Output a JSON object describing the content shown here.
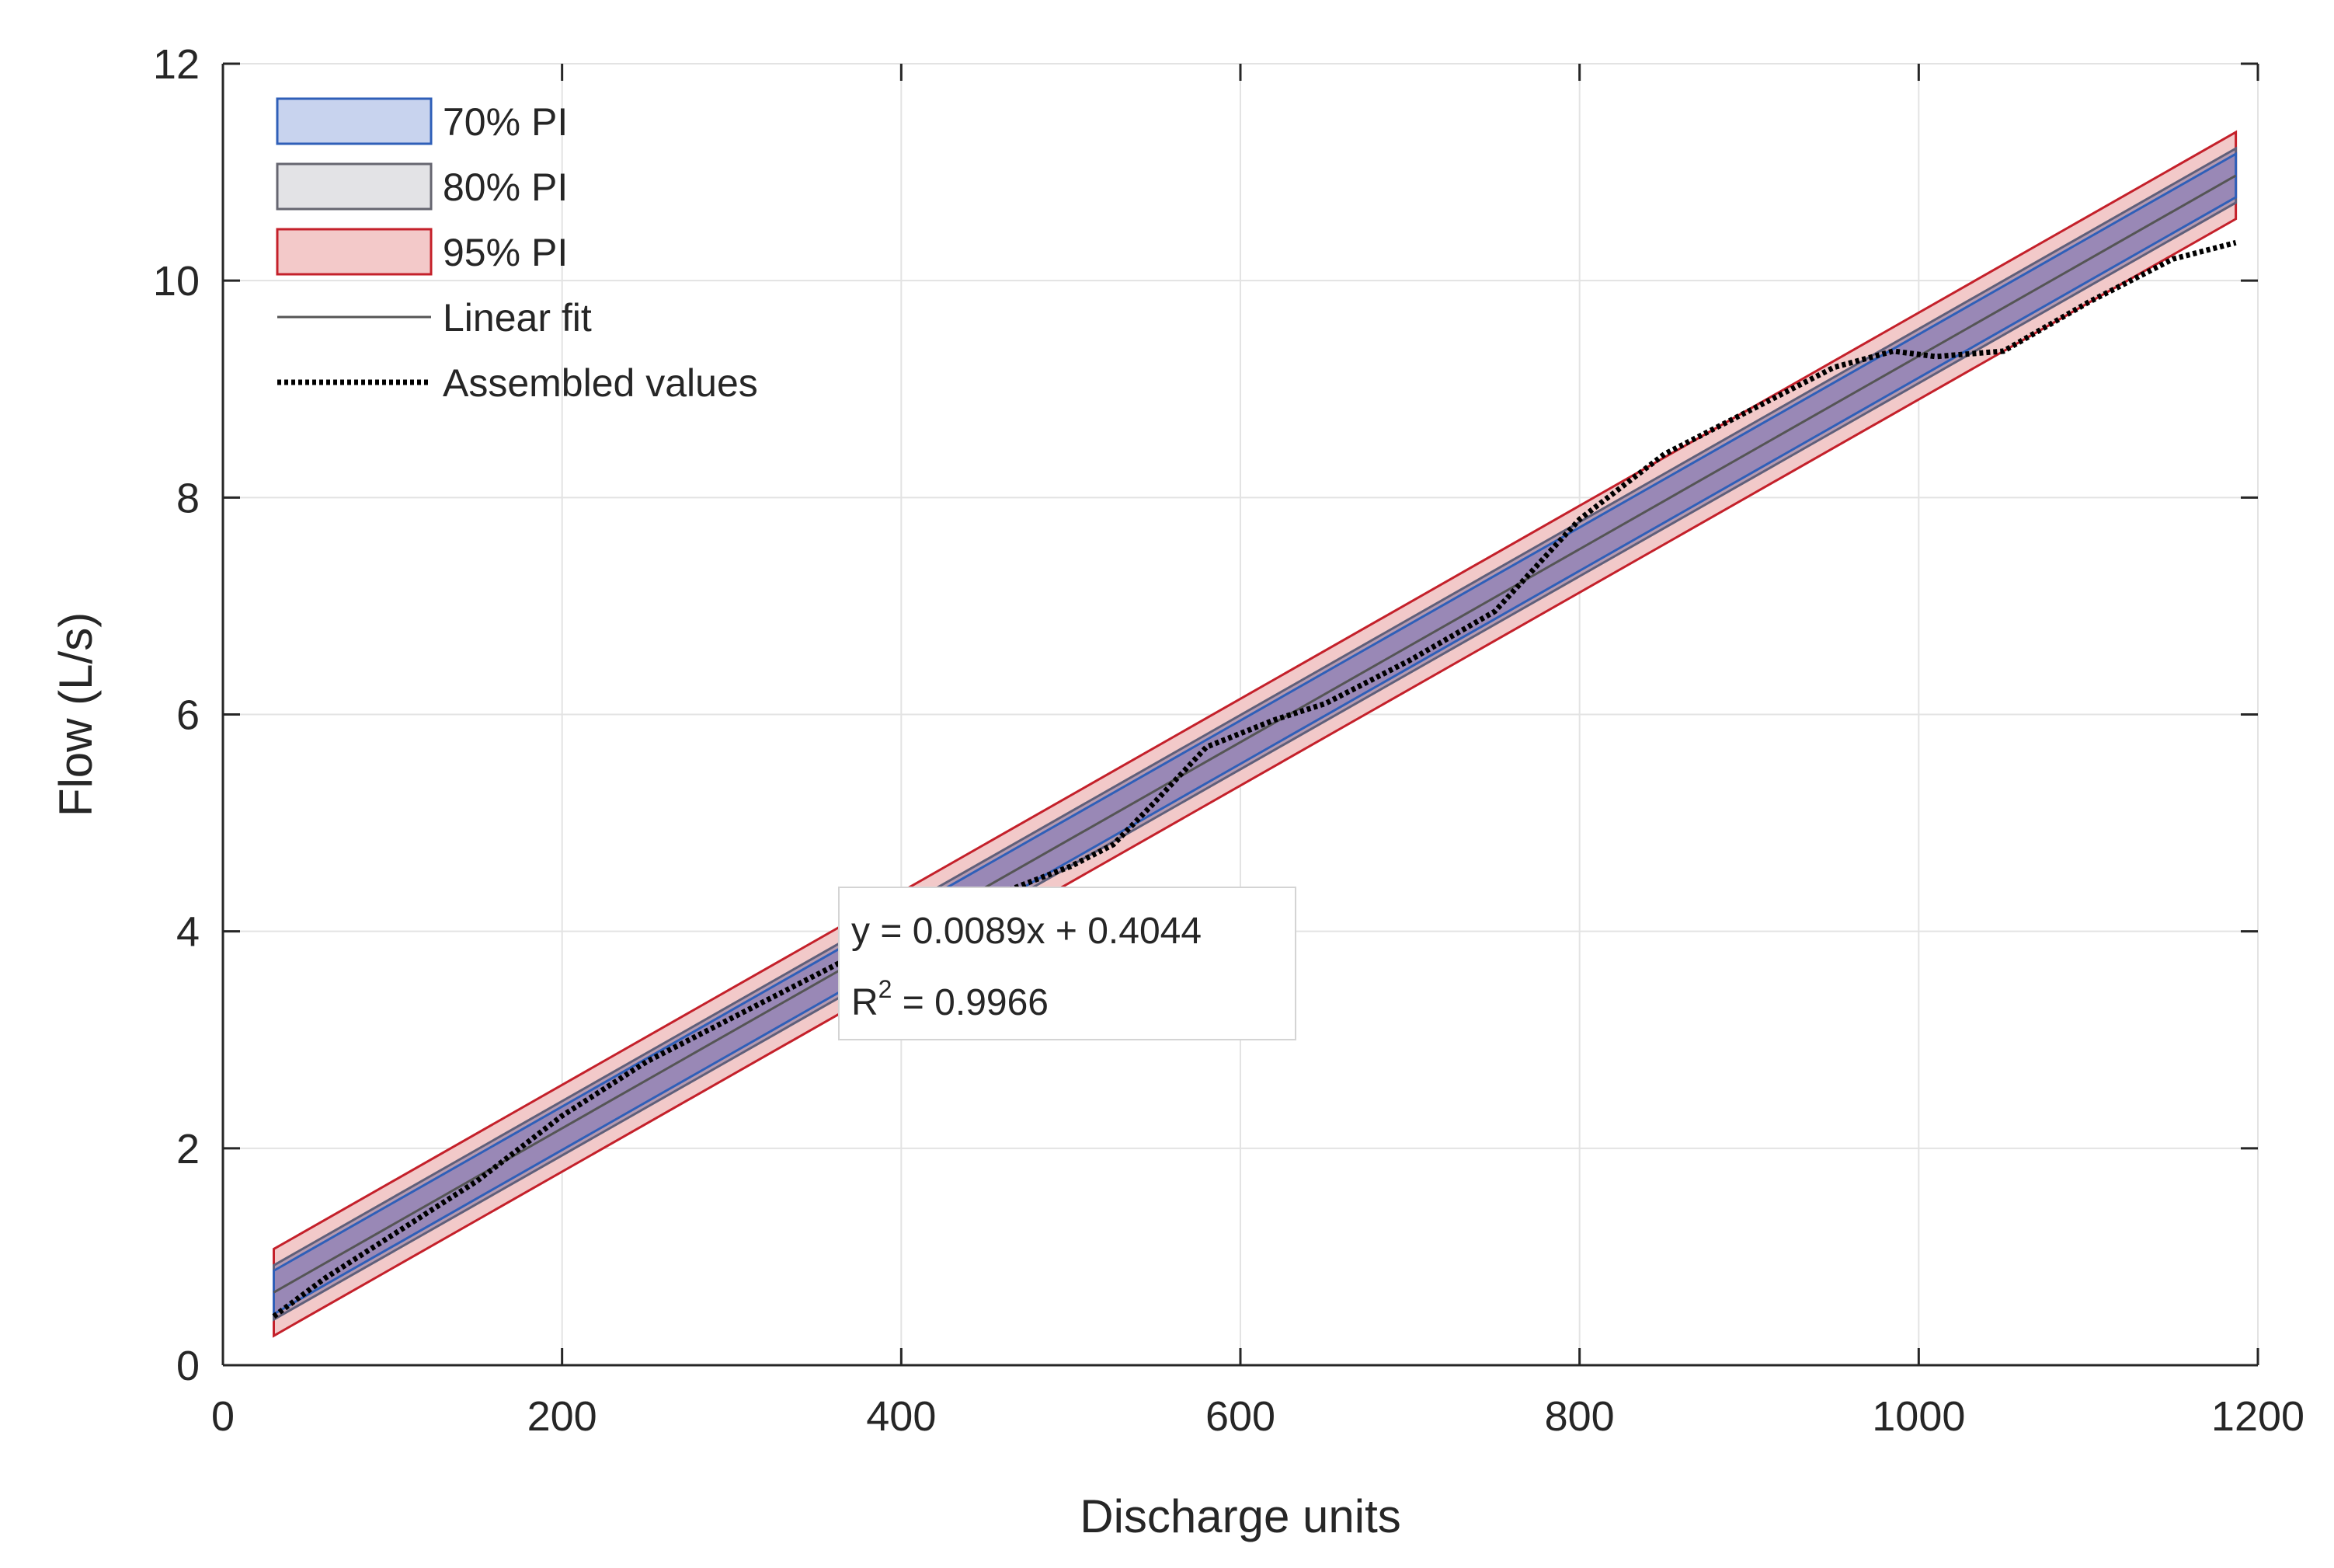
{
  "chart_data": {
    "type": "line",
    "xlabel": "Discharge units",
    "ylabel": "Flow (L/s)",
    "xlim": [
      0,
      1200
    ],
    "ylim": [
      0,
      12
    ],
    "xticks": [
      0,
      200,
      400,
      600,
      800,
      1000,
      1200
    ],
    "yticks": [
      0,
      2,
      4,
      6,
      8,
      10,
      12
    ],
    "grid": true,
    "legend_position": "top-left",
    "legend": [
      {
        "label": "70% PI",
        "kind": "band",
        "fill": "#c8d3ee",
        "stroke": "#2f5fb8"
      },
      {
        "label": "80% PI",
        "kind": "band",
        "fill": "#e3e3e6",
        "stroke": "#666670"
      },
      {
        "label": "95% PI",
        "kind": "band",
        "fill": "#f3c9c9",
        "stroke": "#c4202a"
      },
      {
        "label": "Linear fit",
        "kind": "line",
        "stroke": "#555555"
      },
      {
        "label": "Assembled values",
        "kind": "dotted",
        "stroke": "#000000"
      }
    ],
    "fit": {
      "slope": 0.0089,
      "intercept": 0.4044,
      "x_range": [
        30,
        1187
      ]
    },
    "bands": [
      {
        "name": "95% PI",
        "halfwidth": 0.4,
        "fill": "#f2c9c9",
        "stroke": "#c4202a"
      },
      {
        "name": "80% PI",
        "halfwidth": 0.25,
        "fill": "#b59ab0",
        "stroke": "#5f5f7a"
      },
      {
        "name": "70% PI",
        "halfwidth": 0.2,
        "fill": "#9988b6",
        "stroke": "#2f5fb8"
      }
    ],
    "series": [
      {
        "name": "Assembled values",
        "style": "dotted",
        "x": [
          30,
          60,
          100,
          150,
          200,
          250,
          300,
          350,
          400,
          450,
          500,
          525,
          550,
          580,
          620,
          650,
          700,
          750,
          800,
          850,
          900,
          950,
          985,
          1010,
          1050,
          1100,
          1150,
          1187
        ],
        "y": [
          0.45,
          0.8,
          1.2,
          1.7,
          2.3,
          2.8,
          3.2,
          3.6,
          4.0,
          4.3,
          4.6,
          4.8,
          5.2,
          5.7,
          5.95,
          6.1,
          6.5,
          6.95,
          7.8,
          8.4,
          8.8,
          9.2,
          9.35,
          9.3,
          9.35,
          9.8,
          10.2,
          10.35
        ]
      }
    ],
    "annotation": {
      "line1": "y = 0.0089x + 0.4044",
      "line2_prefix": "R",
      "line2_sup": "2",
      "line2_suffix": " = 0.9966"
    }
  }
}
